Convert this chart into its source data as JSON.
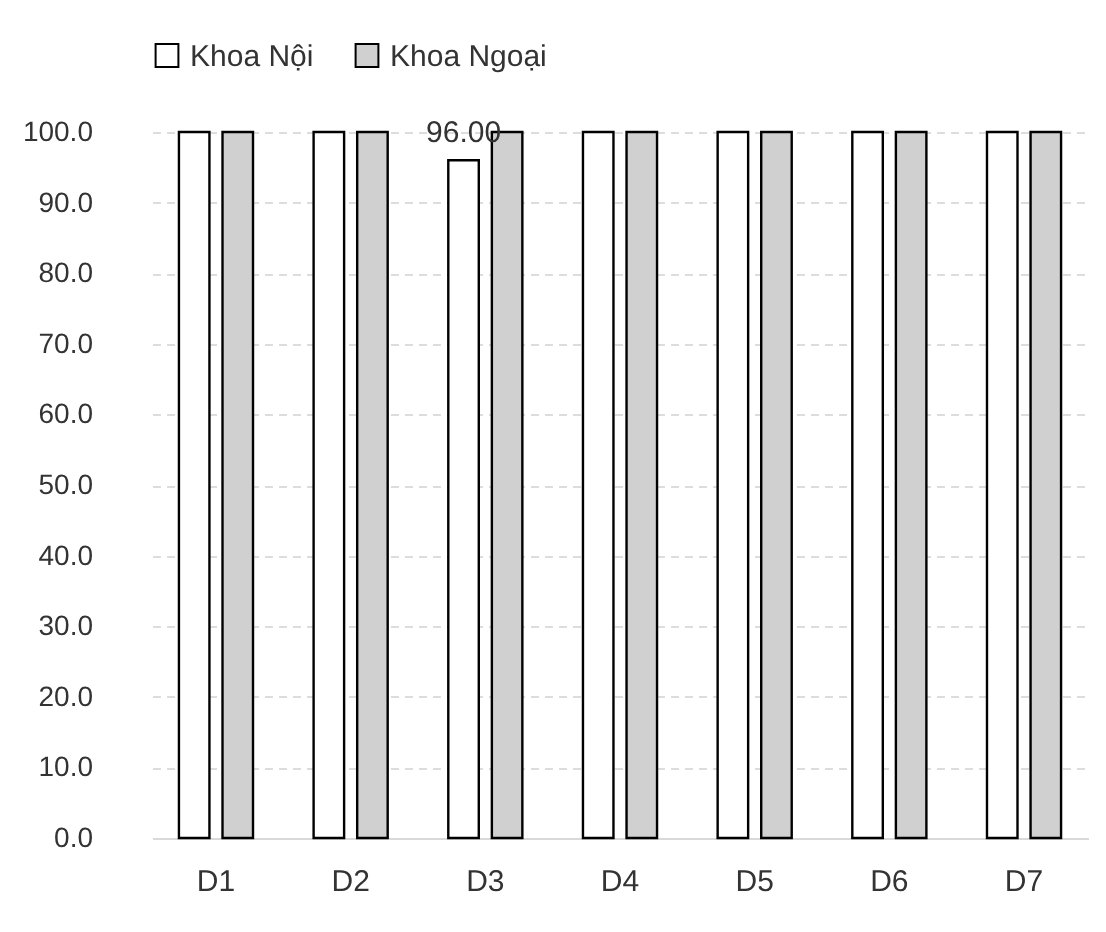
{
  "chart_data": {
    "type": "bar",
    "categories": [
      "D1",
      "D2",
      "D3",
      "D4",
      "D5",
      "D6",
      "D7"
    ],
    "series": [
      {
        "name": "Khoa Nội",
        "color": "#ffffff",
        "values": [
          100,
          100,
          96,
          100,
          100,
          100,
          100
        ],
        "value_labels": [
          null,
          null,
          "96.00",
          null,
          null,
          null,
          null
        ]
      },
      {
        "name": "Khoa Ngoại",
        "color": "#d0d0d0",
        "values": [
          100,
          100,
          100,
          100,
          100,
          100,
          100
        ]
      }
    ],
    "ylim": [
      0,
      100
    ],
    "yticks": [
      {
        "value": 0,
        "label": "0.0"
      },
      {
        "value": 10,
        "label": "10.0"
      },
      {
        "value": 20,
        "label": "20.0"
      },
      {
        "value": 30,
        "label": "30.0"
      },
      {
        "value": 40,
        "label": "40.0"
      },
      {
        "value": 50,
        "label": "50.0"
      },
      {
        "value": 60,
        "label": "60.0"
      },
      {
        "value": 70,
        "label": "70.0"
      },
      {
        "value": 80,
        "label": "80.0"
      },
      {
        "value": 90,
        "label": "90.0"
      },
      {
        "value": 100,
        "label": "100.0"
      }
    ],
    "grid": "y",
    "legend": "top"
  }
}
